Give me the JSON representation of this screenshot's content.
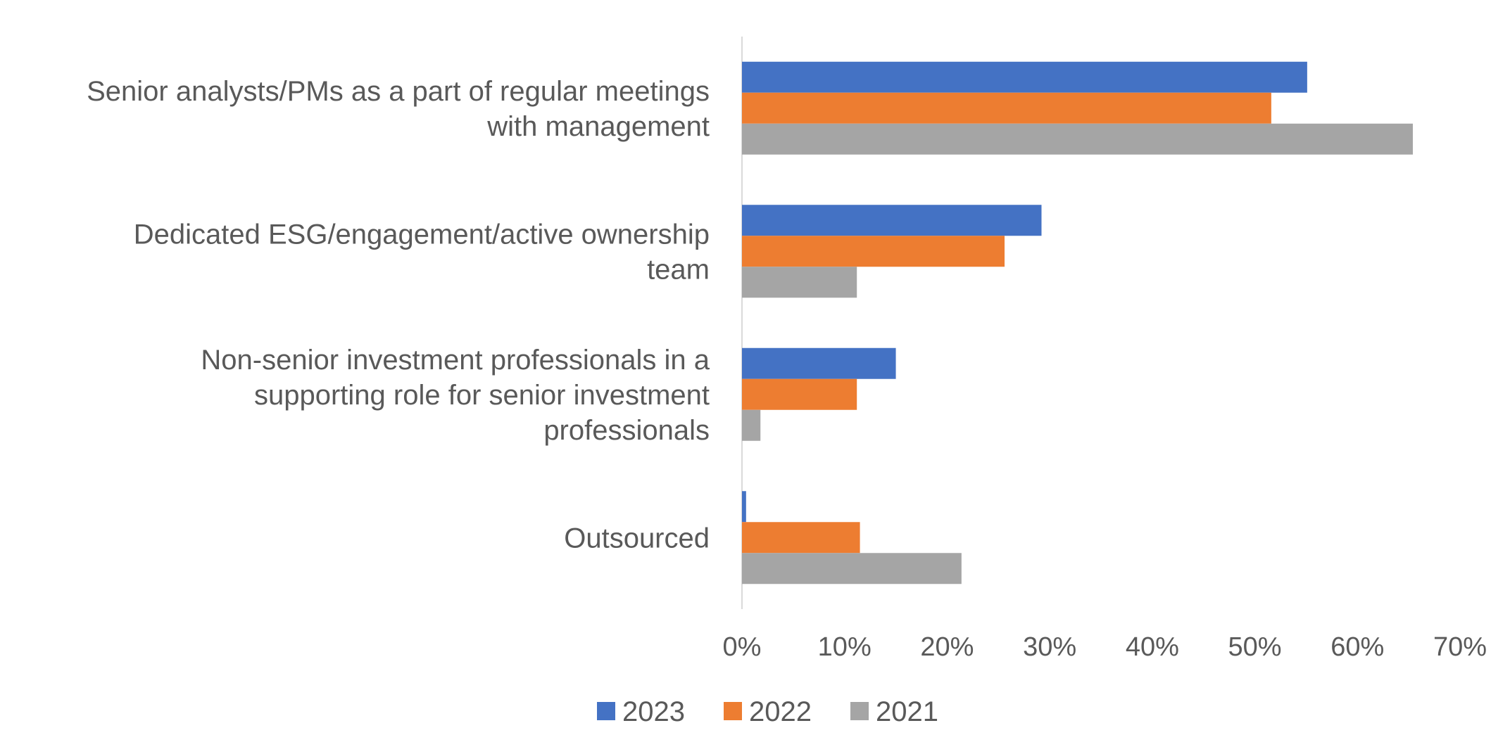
{
  "chart_data": {
    "type": "bar",
    "orientation": "horizontal",
    "title": "",
    "xlabel": "",
    "ylabel": "",
    "categories": [
      [
        "Senior analysts/PMs as a part of regular meetings",
        "with management"
      ],
      [
        "Dedicated ESG/engagement/active ownership",
        "team"
      ],
      [
        "Non-senior investment professionals in a",
        "supporting role for senior investment",
        "professionals"
      ],
      [
        "Outsourced"
      ]
    ],
    "series": [
      {
        "name": "2023",
        "color": "#4472C4",
        "values": [
          55.1,
          29.2,
          15.0,
          0.4
        ]
      },
      {
        "name": "2022",
        "color": "#ED7D31",
        "values": [
          51.6,
          25.6,
          11.2,
          11.5
        ]
      },
      {
        "name": "2021",
        "color": "#A5A5A5",
        "values": [
          65.4,
          11.2,
          1.8,
          21.4
        ]
      }
    ],
    "xlim": [
      0,
      70
    ],
    "xticks": [
      "0%",
      "10%",
      "20%",
      "30%",
      "40%",
      "50%",
      "60%",
      "70%"
    ],
    "grid": false,
    "legend_position": "bottom"
  }
}
